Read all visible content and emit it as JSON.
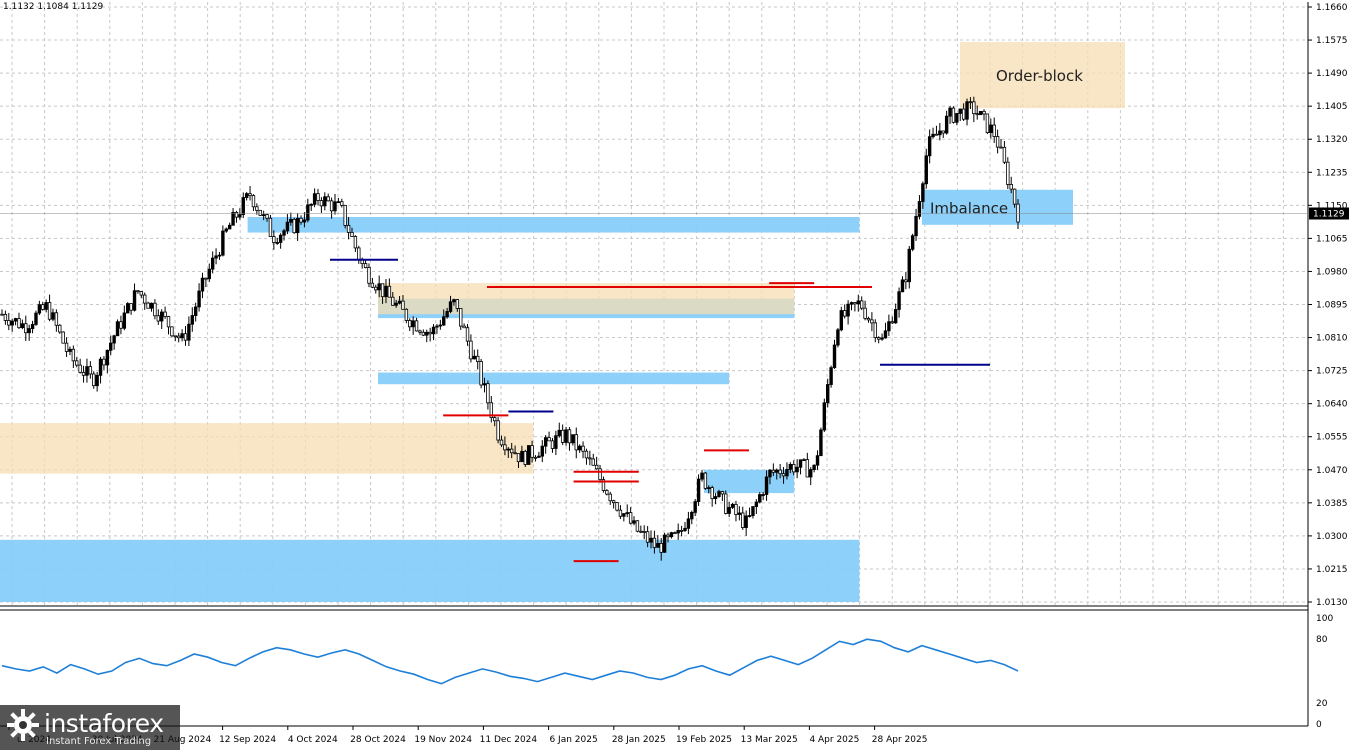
{
  "header": {
    "ohlc": "1.1132 1.1084 1.1129"
  },
  "brand": {
    "name": "instaforex",
    "tagline": "Instant Forex Trading"
  },
  "colors": {
    "bull": "#000000",
    "zone_blue": "#87CEFA",
    "zone_beige": "#F5DEB3",
    "zone_green": "#7FE0C0",
    "level_red": "#E00000",
    "level_navy": "#00008B",
    "rsi_line": "#1E7FD8",
    "price_label_bg": "#000000"
  },
  "chart_data": {
    "type": "candlestick",
    "symbol_pair_hint": "",
    "ylim": [
      1.013,
      1.166
    ],
    "price_ticks": [
      "1.1660",
      "1.1575",
      "1.1490",
      "1.1405",
      "1.1320",
      "1.1235",
      "1.1150",
      "1.1065",
      "1.0980",
      "1.0895",
      "1.0810",
      "1.0725",
      "1.0640",
      "1.0555",
      "1.0470",
      "1.0385",
      "1.0300",
      "1.0215",
      "1.0130"
    ],
    "current_price": "1.1129",
    "time_ticks": [
      "ul 2024",
      "30 Jul 2024",
      "21 Aug 2024",
      "12 Sep 2024",
      "4 Oct 2024",
      "28 Oct 2024",
      "19 Nov 2024",
      "11 Dec 2024",
      "6 Jan 2025",
      "28 Jan 2025",
      "19 Feb 2025",
      "13 Mar 2025",
      "4 Apr 2025",
      "28 Apr 2025"
    ],
    "approx_close_path": [
      {
        "date": "Jul 2024",
        "price": 1.087
      },
      {
        "date": "Jul 2024",
        "price": 1.084
      },
      {
        "date": "Jul 2024",
        "price": 1.089
      },
      {
        "date": "Jul 2024",
        "price": 1.076
      },
      {
        "date": "Jul 2024",
        "price": 1.07
      },
      {
        "date": "30 Jul 2024",
        "price": 1.082
      },
      {
        "date": "30 Jul 2024",
        "price": 1.093
      },
      {
        "date": "30 Jul 2024",
        "price": 1.087
      },
      {
        "date": "30 Jul 2024",
        "price": 1.08
      },
      {
        "date": "21 Aug 2024",
        "price": 1.096
      },
      {
        "date": "21 Aug 2024",
        "price": 1.109
      },
      {
        "date": "21 Aug 2024",
        "price": 1.118
      },
      {
        "date": "21 Aug 2024",
        "price": 1.107
      },
      {
        "date": "12 Sep 2024",
        "price": 1.11
      },
      {
        "date": "12 Sep 2024",
        "price": 1.117
      },
      {
        "date": "12 Sep 2024",
        "price": 1.114
      },
      {
        "date": "4 Oct 2024",
        "price": 1.099
      },
      {
        "date": "4 Oct 2024",
        "price": 1.092
      },
      {
        "date": "4 Oct 2024",
        "price": 1.086
      },
      {
        "date": "28 Oct 2024",
        "price": 1.082
      },
      {
        "date": "28 Oct 2024",
        "price": 1.09
      },
      {
        "date": "28 Oct 2024",
        "price": 1.074
      },
      {
        "date": "19 Nov 2024",
        "price": 1.056
      },
      {
        "date": "19 Nov 2024",
        "price": 1.05
      },
      {
        "date": "19 Nov 2024",
        "price": 1.053
      },
      {
        "date": "11 Dec 2024",
        "price": 1.056
      },
      {
        "date": "11 Dec 2024",
        "price": 1.049
      },
      {
        "date": "11 Dec 2024",
        "price": 1.04
      },
      {
        "date": "6 Jan 2025",
        "price": 1.032
      },
      {
        "date": "6 Jan 2025",
        "price": 1.027
      },
      {
        "date": "6 Jan 2025",
        "price": 1.03
      },
      {
        "date": "28 Jan 2025",
        "price": 1.045
      },
      {
        "date": "28 Jan 2025",
        "price": 1.038
      },
      {
        "date": "28 Jan 2025",
        "price": 1.033
      },
      {
        "date": "19 Feb 2025",
        "price": 1.046
      },
      {
        "date": "19 Feb 2025",
        "price": 1.048
      },
      {
        "date": "19 Feb 2025",
        "price": 1.047
      },
      {
        "date": "13 Mar 2025",
        "price": 1.085
      },
      {
        "date": "13 Mar 2025",
        "price": 1.09
      },
      {
        "date": "13 Mar 2025",
        "price": 1.08
      },
      {
        "date": "4 Apr 2025",
        "price": 1.096
      },
      {
        "date": "4 Apr 2025",
        "price": 1.13
      },
      {
        "date": "4 Apr 2025",
        "price": 1.138
      },
      {
        "date": "28 Apr 2025",
        "price": 1.14
      },
      {
        "date": "28 Apr 2025",
        "price": 1.133
      },
      {
        "date": "28 Apr 2025",
        "price": 1.1129
      }
    ],
    "zones": [
      {
        "kind": "imbalance",
        "color": "blue",
        "label": "Imbalance",
        "from": "4 Apr 2025",
        "to": "",
        "low": 1.11,
        "high": 1.119
      },
      {
        "kind": "order-block",
        "color": "beige",
        "label": "Order-block",
        "from": "4 Apr 2025",
        "to": "",
        "low": 1.14,
        "high": 1.157
      },
      {
        "kind": "imbalance",
        "color": "blue",
        "label": "",
        "from": "12 Sep 2024",
        "to": "4 Apr 2025",
        "low": 1.108,
        "high": 1.112
      },
      {
        "kind": "imbalance",
        "color": "blue",
        "label": "",
        "from": "28 Oct 2024",
        "to": "13 Mar 2025",
        "low": 1.086,
        "high": 1.091
      },
      {
        "kind": "order-block",
        "color": "beige",
        "label": "",
        "from": "28 Oct 2024",
        "to": "13 Mar 2025",
        "low": 1.087,
        "high": 1.095
      },
      {
        "kind": "imbalance",
        "color": "blue",
        "label": "",
        "from": "28 Oct 2024",
        "to": "19 Feb 2025",
        "low": 1.069,
        "high": 1.072
      },
      {
        "kind": "order-block",
        "color": "beige",
        "label": "",
        "from": "Jul 2024",
        "to": "11 Dec 2024",
        "low": 1.046,
        "high": 1.059
      },
      {
        "kind": "imbalance",
        "color": "blue",
        "label": "",
        "from": "19 Feb 2025",
        "to": "13 Mar 2025",
        "low": 1.041,
        "high": 1.047
      },
      {
        "kind": "imbalance",
        "color": "blue",
        "label": "",
        "from": "Jul 2024",
        "to": "4 Apr 2025",
        "low": 1.013,
        "high": 1.029
      }
    ],
    "levels": [
      {
        "color": "red",
        "price": 1.094,
        "from": "28 Oct 2024",
        "to": "13 Mar 2025"
      },
      {
        "color": "red",
        "price": 1.095,
        "from": "13 Mar 2025",
        "to": "13 Mar 2025"
      },
      {
        "color": "red",
        "price": 1.061,
        "from": "19 Nov 2024",
        "to": "11 Dec 2024"
      },
      {
        "color": "red",
        "price": 1.0465,
        "from": "6 Jan 2025",
        "to": "28 Jan 2025"
      },
      {
        "color": "red",
        "price": 1.044,
        "from": "6 Jan 2025",
        "to": "28 Jan 2025"
      },
      {
        "color": "red",
        "price": 1.0235,
        "from": "6 Jan 2025",
        "to": "6 Jan 2025"
      },
      {
        "color": "red",
        "price": 1.052,
        "from": "19 Feb 2025",
        "to": "19 Feb 2025"
      },
      {
        "color": "navy",
        "price": 1.062,
        "from": "11 Dec 2024",
        "to": "11 Dec 2024"
      },
      {
        "color": "navy",
        "price": 1.101,
        "from": "12 Sep 2024",
        "to": "4 Oct 2024"
      },
      {
        "color": "navy",
        "price": 1.074,
        "from": "13 Mar 2025",
        "to": "28 Apr 2025"
      }
    ],
    "labels": [
      "Order-block",
      "Imbalance"
    ],
    "grid": true,
    "indicator": {
      "type": "line",
      "ticks": [
        "100",
        "80",
        "20",
        "0"
      ],
      "ylim": [
        0,
        100
      ],
      "values": [
        55,
        52,
        50,
        54,
        48,
        56,
        52,
        47,
        50,
        58,
        62,
        57,
        55,
        60,
        66,
        63,
        58,
        55,
        62,
        68,
        72,
        70,
        66,
        63,
        67,
        70,
        66,
        60,
        54,
        50,
        47,
        42,
        38,
        44,
        48,
        52,
        49,
        45,
        43,
        40,
        44,
        48,
        45,
        42,
        46,
        50,
        48,
        44,
        42,
        46,
        52,
        55,
        50,
        46,
        53,
        60,
        64,
        60,
        56,
        62,
        70,
        78,
        75,
        80,
        78,
        72,
        68,
        74,
        70,
        66,
        62,
        58,
        60,
        56,
        50
      ]
    }
  }
}
